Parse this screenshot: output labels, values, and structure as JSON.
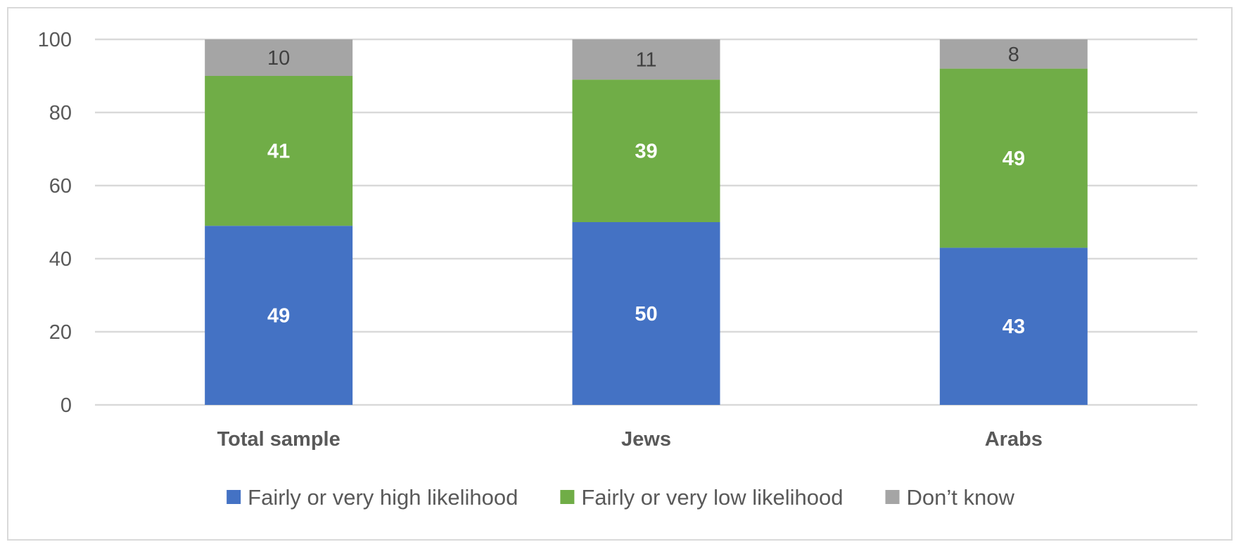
{
  "chart_data": {
    "type": "bar",
    "stacked": true,
    "title": "",
    "xlabel": "",
    "ylabel": "",
    "categories": [
      "Total sample",
      "Jews",
      "Arabs"
    ],
    "series": [
      {
        "name": "Fairly or very high likelihood",
        "values": [
          49,
          50,
          43
        ],
        "color": "#4472c4",
        "label_color": "#ffffff",
        "label_bold": true
      },
      {
        "name": "Fairly or very low likelihood",
        "values": [
          41,
          39,
          49
        ],
        "color": "#70ad47",
        "label_color": "#ffffff",
        "label_bold": true
      },
      {
        "name": "Don’t know",
        "values": [
          10,
          11,
          8
        ],
        "color": "#a5a5a5",
        "label_color": "#404040",
        "label_bold": false
      }
    ],
    "ylim": [
      0,
      100
    ],
    "yticks": [
      0,
      20,
      40,
      60,
      80,
      100
    ],
    "grid": true,
    "legend_position": "bottom"
  },
  "colors": {
    "grid": "#d9d9d9",
    "axis_text": "#595959",
    "frame": "#d9d9d9"
  }
}
